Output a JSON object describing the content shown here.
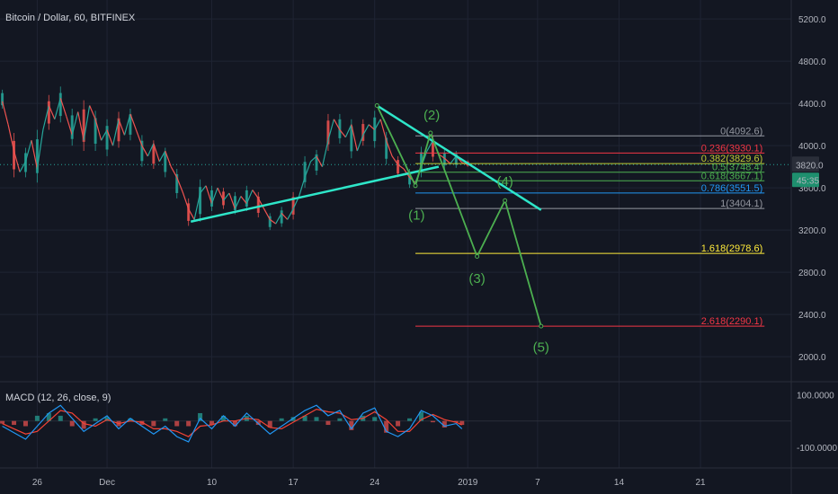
{
  "chart_data": {
    "type": "candlestick",
    "title": "Bitcoin / Dollar, 60, BITFINEX",
    "colors": {
      "background": "#131722",
      "grid": "#1f2433",
      "up": "#26a69a",
      "down": "#ef5350",
      "trendline": "#2ee6c9",
      "wave": "#4caf50",
      "macd": "#2196f3",
      "signal": "#f44336",
      "price_tag": "#2a2e39",
      "time_tag": "#1e8f6e",
      "current_price_line": "#26a69a"
    },
    "price_axis": {
      "ticks": [
        "5200.0",
        "4800.0",
        "4400.0",
        "4000.0",
        "3600.0",
        "3200.0",
        "2800.0",
        "2400.0",
        "2000.0"
      ],
      "tick_values": [
        5200,
        4800,
        4400,
        4000,
        3600,
        3200,
        2800,
        2400,
        2000
      ],
      "range": [
        1780,
        5380
      ]
    },
    "time_axis": {
      "ticks": [
        "26",
        "Dec",
        "10",
        "17",
        "24",
        "2019",
        "7",
        "14",
        "21"
      ],
      "tick_values": [
        26,
        32,
        41,
        48,
        55,
        63,
        69,
        76,
        83
      ],
      "range": [
        22.8,
        90.8
      ]
    },
    "current_price": {
      "label": "3820.0",
      "value": 3820,
      "countdown": "45:35"
    },
    "price_series": [
      [
        23.0,
        4420
      ],
      [
        23.5,
        4200
      ],
      [
        24.0,
        3950
      ],
      [
        24.5,
        3750
      ],
      [
        25.0,
        3850
      ],
      [
        25.5,
        4050
      ],
      [
        26.0,
        3780
      ],
      [
        26.5,
        4150
      ],
      [
        27.0,
        4380
      ],
      [
        27.5,
        4250
      ],
      [
        28.0,
        4450
      ],
      [
        28.5,
        4280
      ],
      [
        29.0,
        4100
      ],
      [
        29.5,
        4320
      ],
      [
        30.0,
        4050
      ],
      [
        30.5,
        4380
      ],
      [
        31.0,
        4250
      ],
      [
        31.5,
        4050
      ],
      [
        32.0,
        4150
      ],
      [
        32.5,
        4000
      ],
      [
        33.0,
        4250
      ],
      [
        33.5,
        4100
      ],
      [
        34.0,
        4300
      ],
      [
        34.5,
        4150
      ],
      [
        35.0,
        4000
      ],
      [
        35.5,
        3900
      ],
      [
        36.0,
        4020
      ],
      [
        36.5,
        3850
      ],
      [
        37.0,
        3950
      ],
      [
        37.5,
        3800
      ],
      [
        38.0,
        3700
      ],
      [
        38.5,
        3560
      ],
      [
        39.0,
        3400
      ],
      [
        39.5,
        3300
      ],
      [
        40.0,
        3550
      ],
      [
        40.5,
        3620
      ],
      [
        41.0,
        3450
      ],
      [
        41.5,
        3600
      ],
      [
        42.0,
        3480
      ],
      [
        42.5,
        3550
      ],
      [
        43.0,
        3400
      ],
      [
        43.5,
        3520
      ],
      [
        44.0,
        3450
      ],
      [
        44.5,
        3580
      ],
      [
        45.0,
        3500
      ],
      [
        45.5,
        3400
      ],
      [
        46.0,
        3300
      ],
      [
        46.5,
        3260
      ],
      [
        47.0,
        3360
      ],
      [
        47.5,
        3300
      ],
      [
        48.0,
        3400
      ],
      [
        48.5,
        3520
      ],
      [
        49.0,
        3700
      ],
      [
        49.5,
        3850
      ],
      [
        50.0,
        3900
      ],
      [
        50.5,
        3800
      ],
      [
        51.0,
        4050
      ],
      [
        51.5,
        4250
      ],
      [
        52.0,
        4150
      ],
      [
        52.5,
        4080
      ],
      [
        53.0,
        4200
      ],
      [
        53.5,
        3950
      ],
      [
        54.0,
        4100
      ],
      [
        54.5,
        4200
      ],
      [
        55.0,
        4150
      ],
      [
        55.5,
        4250
      ],
      [
        56.0,
        4050
      ],
      [
        56.5,
        3900
      ],
      [
        57.0,
        3820
      ],
      [
        57.5,
        3780
      ],
      [
        58.0,
        3700
      ],
      [
        58.5,
        3650
      ],
      [
        59.0,
        3800
      ],
      [
        59.5,
        3950
      ],
      [
        60.0,
        4050
      ],
      [
        60.5,
        3920
      ],
      [
        61.0,
        3880
      ],
      [
        61.5,
        3830
      ],
      [
        62.0,
        3900
      ],
      [
        62.5,
        3840
      ],
      [
        63.0,
        3820
      ]
    ],
    "candle_ranges": [
      [
        23.0,
        4530,
        4350
      ],
      [
        24.0,
        4120,
        3700
      ],
      [
        25.0,
        3980,
        3700
      ],
      [
        26.0,
        4150,
        3650
      ],
      [
        27.0,
        4480,
        4150
      ],
      [
        28.0,
        4560,
        4220
      ],
      [
        29.0,
        4350,
        4000
      ],
      [
        30.0,
        4430,
        3950
      ],
      [
        31.0,
        4330,
        3950
      ],
      [
        32.0,
        4250,
        3900
      ],
      [
        33.0,
        4320,
        3980
      ],
      [
        34.0,
        4350,
        4050
      ],
      [
        35.0,
        4100,
        3800
      ],
      [
        36.0,
        4050,
        3780
      ],
      [
        37.0,
        3980,
        3700
      ],
      [
        38.0,
        3780,
        3500
      ],
      [
        39.0,
        3500,
        3240
      ],
      [
        40.0,
        3680,
        3280
      ],
      [
        41.0,
        3620,
        3380
      ],
      [
        42.0,
        3600,
        3400
      ],
      [
        43.0,
        3560,
        3350
      ],
      [
        44.0,
        3620,
        3380
      ],
      [
        45.0,
        3560,
        3320
      ],
      [
        46.0,
        3360,
        3200
      ],
      [
        47.0,
        3420,
        3230
      ],
      [
        48.0,
        3560,
        3300
      ],
      [
        49.0,
        3900,
        3600
      ],
      [
        50.0,
        3960,
        3720
      ],
      [
        51.0,
        4300,
        3950
      ],
      [
        52.0,
        4300,
        4020
      ],
      [
        53.0,
        4250,
        3880
      ],
      [
        54.0,
        4250,
        4000
      ],
      [
        55.0,
        4330,
        3980
      ],
      [
        56.0,
        4130,
        3820
      ],
      [
        57.0,
        3900,
        3700
      ],
      [
        58.0,
        3780,
        3600
      ],
      [
        59.0,
        3990,
        3700
      ],
      [
        60.0,
        4100,
        3850
      ],
      [
        61.0,
        3960,
        3780
      ],
      [
        62.0,
        3950,
        3790
      ],
      [
        63.0,
        3860,
        3800
      ]
    ],
    "trendlines": [
      {
        "name": "rising-support",
        "points": [
          [
            39.2,
            3280
          ],
          [
            60.5,
            3800
          ]
        ]
      },
      {
        "name": "falling-resistance",
        "points": [
          [
            55.2,
            4380
          ],
          [
            69.3,
            3390
          ]
        ]
      }
    ],
    "elliott_projection": {
      "points": [
        [
          55.2,
          4380
        ],
        [
          58.5,
          3620
        ],
        [
          59.8,
          4120
        ],
        [
          63.8,
          2950
        ],
        [
          66.2,
          3480
        ],
        [
          69.3,
          2290
        ]
      ],
      "labels": [
        {
          "text": "(1)",
          "x": 58.6,
          "y": 3300
        },
        {
          "text": "(2)",
          "x": 59.9,
          "y": 4250
        },
        {
          "text": "(3)",
          "x": 63.8,
          "y": 2700
        },
        {
          "text": "(4)",
          "x": 66.2,
          "y": 3620
        },
        {
          "text": "(5)",
          "x": 69.3,
          "y": 2050
        }
      ]
    },
    "fibonacci": {
      "x_range": [
        58.5,
        88.5
      ],
      "levels": [
        {
          "label": "0(4092.6)",
          "value": 4092.6,
          "color": "#9598a1"
        },
        {
          "label": "0.236(3930.1)",
          "value": 3930.1,
          "color": "#f23645"
        },
        {
          "label": "0.382(3829.6)",
          "value": 3829.6,
          "color": "#c0ca33"
        },
        {
          "label": "0.5(3748.4)",
          "value": 3748.4,
          "color": "#4caf50"
        },
        {
          "label": "0.618(3667.1)",
          "value": 3667.1,
          "color": "#4caf50"
        },
        {
          "label": "0.786(3551.5)",
          "value": 3551.5,
          "color": "#2196f3"
        },
        {
          "label": "1(3404.1)",
          "value": 3404.1,
          "color": "#9598a1"
        },
        {
          "label": "1.618(2978.6)",
          "value": 2978.6,
          "color": "#ffeb3b"
        },
        {
          "label": "2.618(2290.1)",
          "value": 2290.1,
          "color": "#f23645"
        }
      ]
    },
    "macd": {
      "label": "MACD (12, 26, close, 9)",
      "axis_ticks": [
        "100.0000",
        "-100.0000"
      ],
      "axis_values": [
        100,
        -100
      ],
      "range": [
        -180,
        140
      ],
      "macd_line": [
        [
          23.0,
          -20
        ],
        [
          24.0,
          -45
        ],
        [
          25.0,
          -70
        ],
        [
          26.0,
          -20
        ],
        [
          27.0,
          30
        ],
        [
          28.0,
          60
        ],
        [
          29.0,
          10
        ],
        [
          30.0,
          -40
        ],
        [
          31.0,
          -10
        ],
        [
          32.0,
          20
        ],
        [
          33.0,
          -30
        ],
        [
          34.0,
          10
        ],
        [
          35.0,
          -20
        ],
        [
          36.0,
          -50
        ],
        [
          37.0,
          -20
        ],
        [
          38.0,
          -60
        ],
        [
          39.0,
          -80
        ],
        [
          40.0,
          10
        ],
        [
          41.0,
          -30
        ],
        [
          42.0,
          20
        ],
        [
          43.0,
          -20
        ],
        [
          44.0,
          30
        ],
        [
          45.0,
          -10
        ],
        [
          46.0,
          -50
        ],
        [
          47.0,
          -20
        ],
        [
          48.0,
          10
        ],
        [
          49.0,
          40
        ],
        [
          50.0,
          60
        ],
        [
          51.0,
          20
        ],
        [
          52.0,
          40
        ],
        [
          53.0,
          -30
        ],
        [
          54.0,
          30
        ],
        [
          55.0,
          50
        ],
        [
          56.0,
          -40
        ],
        [
          57.0,
          -60
        ],
        [
          58.0,
          -30
        ],
        [
          59.0,
          40
        ],
        [
          60.0,
          20
        ],
        [
          61.0,
          -20
        ],
        [
          62.0,
          -10
        ],
        [
          62.5,
          -30
        ]
      ],
      "signal_line": [
        [
          23.0,
          -10
        ],
        [
          24.0,
          -30
        ],
        [
          25.0,
          -50
        ],
        [
          26.0,
          -40
        ],
        [
          27.0,
          0
        ],
        [
          28.0,
          40
        ],
        [
          29.0,
          30
        ],
        [
          30.0,
          -10
        ],
        [
          31.0,
          -20
        ],
        [
          32.0,
          5
        ],
        [
          33.0,
          -10
        ],
        [
          34.0,
          0
        ],
        [
          35.0,
          -5
        ],
        [
          36.0,
          -30
        ],
        [
          37.0,
          -30
        ],
        [
          38.0,
          -40
        ],
        [
          39.0,
          -60
        ],
        [
          40.0,
          -20
        ],
        [
          41.0,
          -15
        ],
        [
          42.0,
          0
        ],
        [
          43.0,
          0
        ],
        [
          44.0,
          10
        ],
        [
          45.0,
          5
        ],
        [
          46.0,
          -25
        ],
        [
          47.0,
          -30
        ],
        [
          48.0,
          -5
        ],
        [
          49.0,
          20
        ],
        [
          50.0,
          45
        ],
        [
          51.0,
          35
        ],
        [
          52.0,
          30
        ],
        [
          53.0,
          5
        ],
        [
          54.0,
          10
        ],
        [
          55.0,
          35
        ],
        [
          56.0,
          5
        ],
        [
          57.0,
          -40
        ],
        [
          58.0,
          -40
        ],
        [
          59.0,
          5
        ],
        [
          60.0,
          25
        ],
        [
          61.0,
          5
        ],
        [
          62.0,
          -5
        ],
        [
          62.5,
          -15
        ]
      ]
    }
  }
}
